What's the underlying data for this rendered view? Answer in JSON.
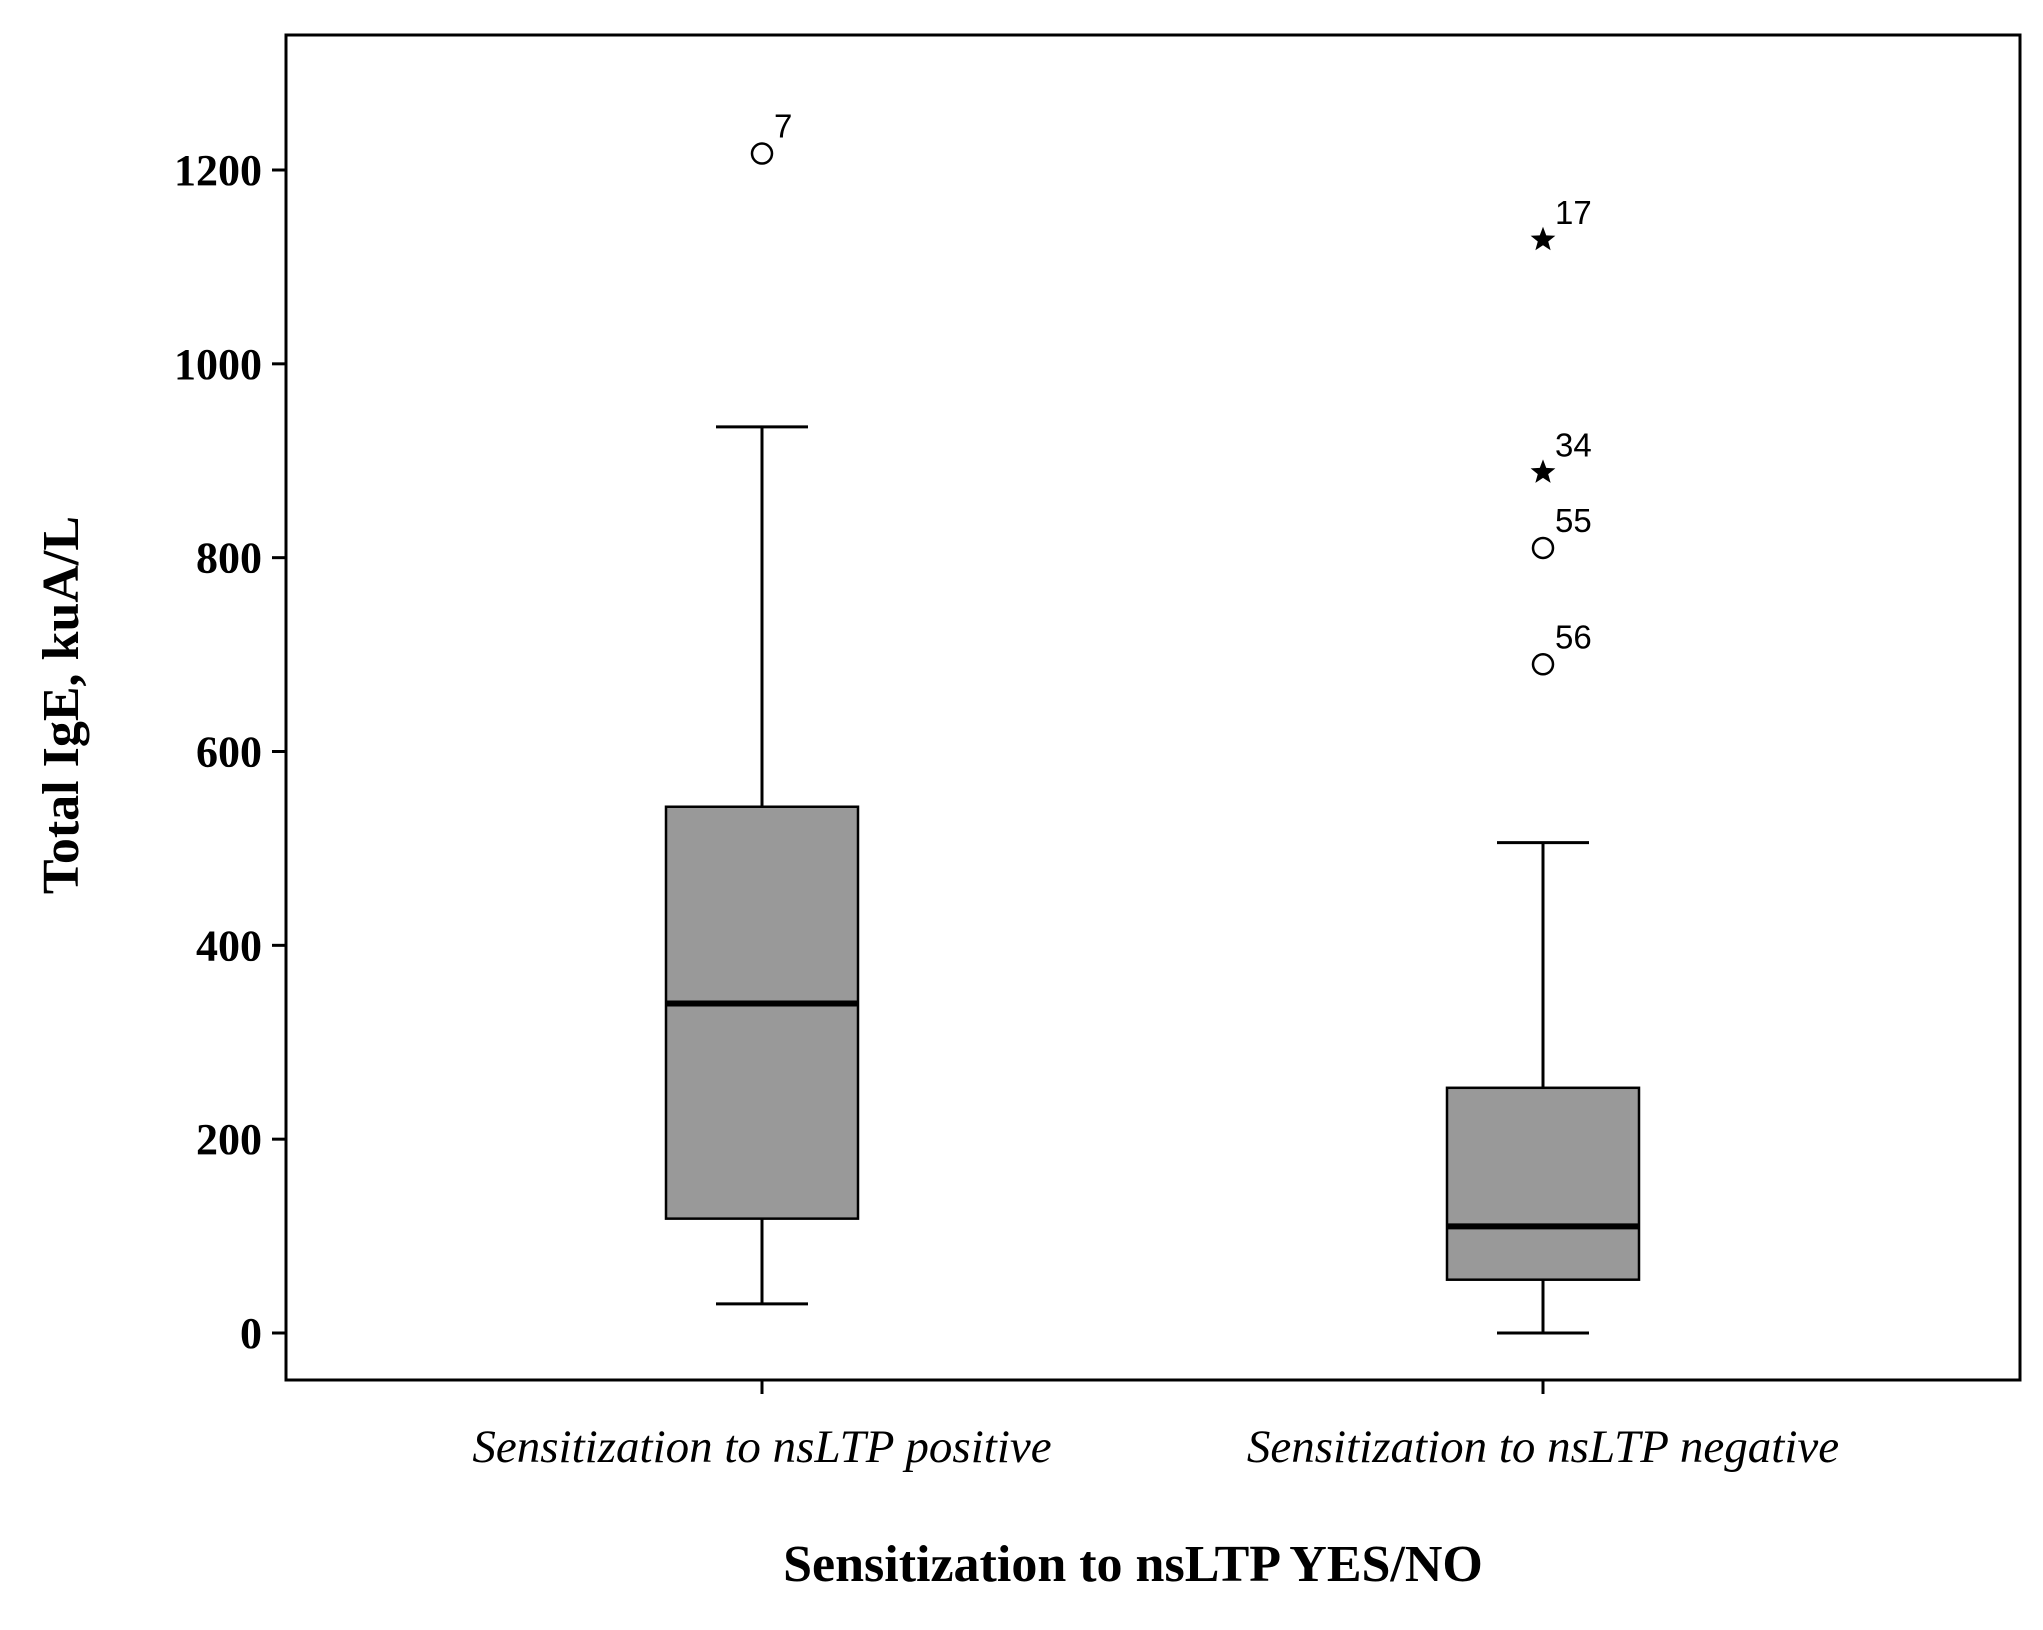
{
  "chart_data": {
    "type": "box",
    "ylabel": "Total IgE, kuA/L",
    "xlabel": "Sensitization to nsLTP YES/NO",
    "ylim": [
      -50,
      1340
    ],
    "yticks": [
      0,
      200,
      400,
      600,
      800,
      1000,
      1200
    ],
    "grid": false,
    "colors": {
      "box_fill": "#999999",
      "stroke": "#000000"
    },
    "groups": [
      {
        "label": "Sensitization to nsLTP positive",
        "whisker_low": 30,
        "q1": 118,
        "median": 340,
        "q3": 543,
        "whisker_high": 935,
        "outliers": [
          {
            "id": "7",
            "value": 1217,
            "marker": "circle"
          }
        ]
      },
      {
        "label": "Sensitization to nsLTP negative",
        "whisker_low": 0,
        "q1": 55,
        "median": 110,
        "q3": 253,
        "whisker_high": 506,
        "outliers": [
          {
            "id": "17",
            "value": 1128,
            "marker": "star"
          },
          {
            "id": "34",
            "value": 888,
            "marker": "star"
          },
          {
            "id": "55",
            "value": 810,
            "marker": "circle"
          },
          {
            "id": "56",
            "value": 690,
            "marker": "circle"
          }
        ]
      }
    ]
  }
}
